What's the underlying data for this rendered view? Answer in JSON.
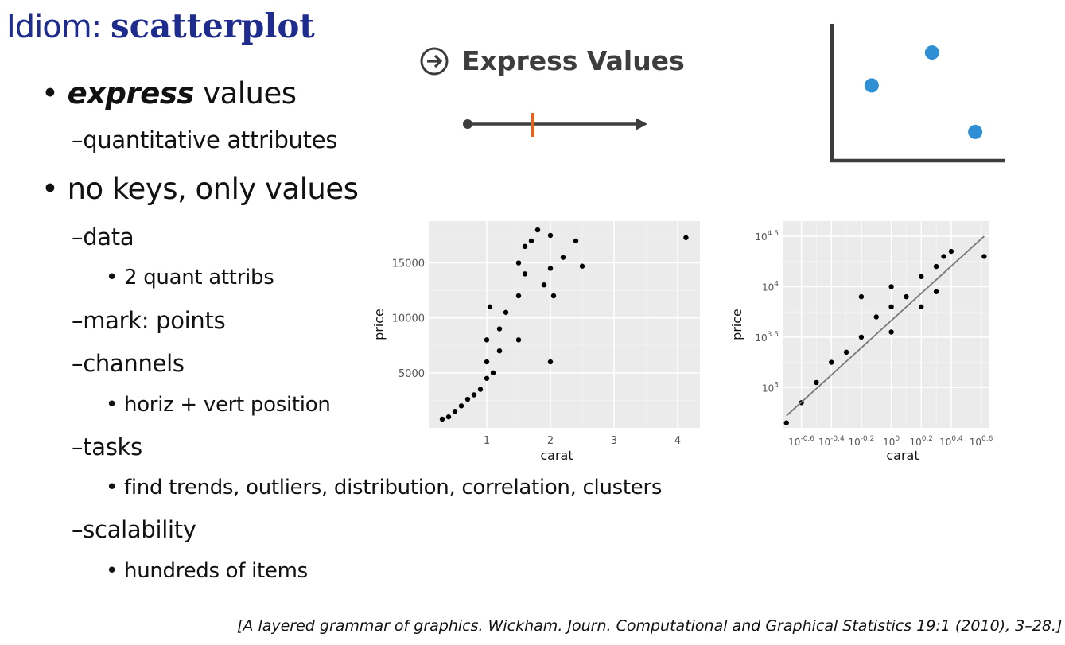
{
  "slide": {
    "title_prefix": "Idiom: ",
    "title_bold": "scatterplot",
    "bullets": [
      {
        "level": 1,
        "bold_italic": "express",
        "text": " values"
      },
      {
        "level": 2,
        "text": "–quantitative attributes"
      },
      {
        "level": 1,
        "text": "no keys, only values"
      },
      {
        "level": 2,
        "text": "–data"
      },
      {
        "level": 3,
        "text": "2 quant attribs"
      },
      {
        "level": 2,
        "text": "–mark: points"
      },
      {
        "level": 2,
        "text": "–channels"
      },
      {
        "level": 3,
        "text": "horiz + vert position"
      },
      {
        "level": 2,
        "text": "–tasks"
      },
      {
        "level": 3,
        "text": "find trends, outliers, distribution, correlation, clusters"
      },
      {
        "level": 2,
        "text": "–scalability"
      },
      {
        "level": 3,
        "text": "hundreds of items"
      }
    ],
    "express_header": "Express Values",
    "citation": "[A layered grammar of graphics. Wickham. Journ. Computational and Graphical Statistics 19:1 (2010), 3–28.]",
    "colors": {
      "title": "#1f2c8f",
      "dot": "#2f8fd4",
      "marker": "#e0661f",
      "panel": "#ebebeb"
    }
  },
  "chart_data": [
    {
      "type": "scatter",
      "xlabel": "carat",
      "ylabel": "price",
      "xlim": [
        0.1,
        4.35
      ],
      "ylim": [
        0,
        18800
      ],
      "xticks": [
        1,
        2,
        3,
        4
      ],
      "xtick_labels": [
        "1",
        "2",
        "3",
        "4"
      ],
      "yticks": [
        5000,
        10000,
        15000
      ],
      "ytick_labels": [
        "5000",
        "10000",
        "15000"
      ],
      "grid": true,
      "points": [
        [
          0.3,
          800
        ],
        [
          0.4,
          1000
        ],
        [
          0.5,
          1500
        ],
        [
          0.6,
          2000
        ],
        [
          0.7,
          2600
        ],
        [
          0.8,
          3000
        ],
        [
          0.9,
          3500
        ],
        [
          1.0,
          4500
        ],
        [
          1.0,
          6000
        ],
        [
          1.0,
          8000
        ],
        [
          1.05,
          11000
        ],
        [
          1.1,
          5000
        ],
        [
          1.2,
          7000
        ],
        [
          1.2,
          9000
        ],
        [
          1.3,
          10500
        ],
        [
          1.5,
          8000
        ],
        [
          1.5,
          12000
        ],
        [
          1.5,
          15000
        ],
        [
          1.6,
          14000
        ],
        [
          1.6,
          16500
        ],
        [
          1.7,
          17000
        ],
        [
          1.8,
          18000
        ],
        [
          1.9,
          13000
        ],
        [
          2.0,
          14500
        ],
        [
          2.0,
          17500
        ],
        [
          2.05,
          12000
        ],
        [
          2.0,
          6000
        ],
        [
          2.2,
          15500
        ],
        [
          2.4,
          17000
        ],
        [
          2.5,
          14700
        ],
        [
          4.13,
          17300
        ]
      ],
      "outlier": [
        4.13,
        17300
      ]
    },
    {
      "type": "scatter",
      "xlabel": "carat",
      "ylabel": "price",
      "xscale": "log",
      "yscale": "log",
      "xlim": [
        -0.72,
        0.65
      ],
      "ylim": [
        2.6,
        4.65
      ],
      "xticks": [
        -0.6,
        -0.4,
        -0.2,
        0,
        0.2,
        0.4,
        0.6
      ],
      "xtick_labels": [
        "10^-0.6",
        "10^-0.4",
        "10^-0.2",
        "10^0",
        "10^0.2",
        "10^0.4",
        "10^0.6"
      ],
      "yticks": [
        3,
        3.5,
        4,
        4.5
      ],
      "ytick_labels": [
        "10^3",
        "10^3.5",
        "10^4",
        "10^4.5"
      ],
      "grid": true,
      "points": [
        [
          -0.7,
          2.65
        ],
        [
          -0.6,
          2.85
        ],
        [
          -0.5,
          3.05
        ],
        [
          -0.4,
          3.25
        ],
        [
          -0.3,
          3.35
        ],
        [
          -0.2,
          3.5
        ],
        [
          -0.1,
          3.7
        ],
        [
          0.0,
          3.8
        ],
        [
          0.0,
          4.0
        ],
        [
          0.1,
          3.9
        ],
        [
          0.2,
          4.1
        ],
        [
          0.3,
          4.2
        ],
        [
          0.35,
          4.3
        ],
        [
          0.4,
          4.35
        ],
        [
          0.2,
          3.8
        ],
        [
          0.3,
          3.95
        ],
        [
          0.0,
          3.55
        ],
        [
          -0.2,
          3.9
        ],
        [
          0.62,
          4.3
        ]
      ],
      "trend_line": {
        "x": [
          -0.7,
          0.62
        ],
        "y": [
          2.72,
          4.5
        ]
      }
    },
    {
      "type": "scatter",
      "xlabel": "",
      "ylabel": "",
      "xlim": [
        0,
        10
      ],
      "ylim": [
        0,
        10
      ],
      "points": [
        [
          2.3,
          5.5
        ],
        [
          5.8,
          7.9
        ],
        [
          8.3,
          2.1
        ]
      ],
      "color": "#2f8fd4"
    }
  ]
}
